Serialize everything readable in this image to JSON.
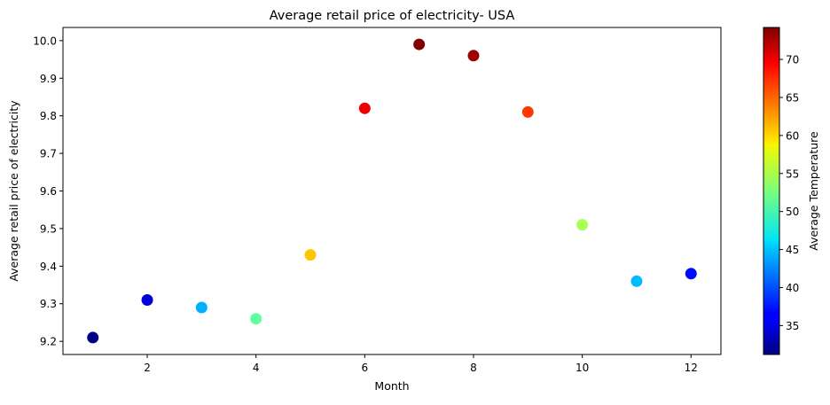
{
  "chart_data": {
    "type": "scatter",
    "title": "Average retail price of electricity- USA",
    "xlabel": "Month",
    "ylabel": "Average retail price of electricity",
    "xlim": [
      0.45,
      12.55
    ],
    "ylim": [
      9.165,
      10.035
    ],
    "x_ticks": [
      2,
      4,
      6,
      8,
      10,
      12
    ],
    "y_ticks": [
      9.2,
      9.3,
      9.4,
      9.5,
      9.6,
      9.7,
      9.8,
      9.9,
      10.0
    ],
    "y_tick_labels": [
      "9.2",
      "9.3",
      "9.4",
      "9.5",
      "9.6",
      "9.7",
      "9.8",
      "9.9",
      "10.0"
    ],
    "grid": false,
    "colormap": "jet",
    "series": [
      {
        "x": [
          1,
          2,
          3,
          4,
          5,
          6,
          7,
          8,
          9,
          10,
          11,
          12
        ],
        "y": [
          9.21,
          9.31,
          9.29,
          9.26,
          9.43,
          9.82,
          9.99,
          9.96,
          9.81,
          9.51,
          9.36,
          9.38
        ],
        "color_values": [
          31.5,
          35.0,
          44.0,
          51.5,
          60.5,
          69.5,
          74.0,
          73.0,
          66.5,
          54.5,
          44.5,
          37.0
        ]
      }
    ],
    "colorbar": {
      "label": "Average Temperature",
      "range": [
        31.2,
        74.2
      ],
      "ticks": [
        35,
        40,
        45,
        50,
        55,
        60,
        65,
        70
      ],
      "tick_labels": [
        "35",
        "40",
        "45",
        "50",
        "55",
        "60",
        "65",
        "70"
      ]
    }
  }
}
